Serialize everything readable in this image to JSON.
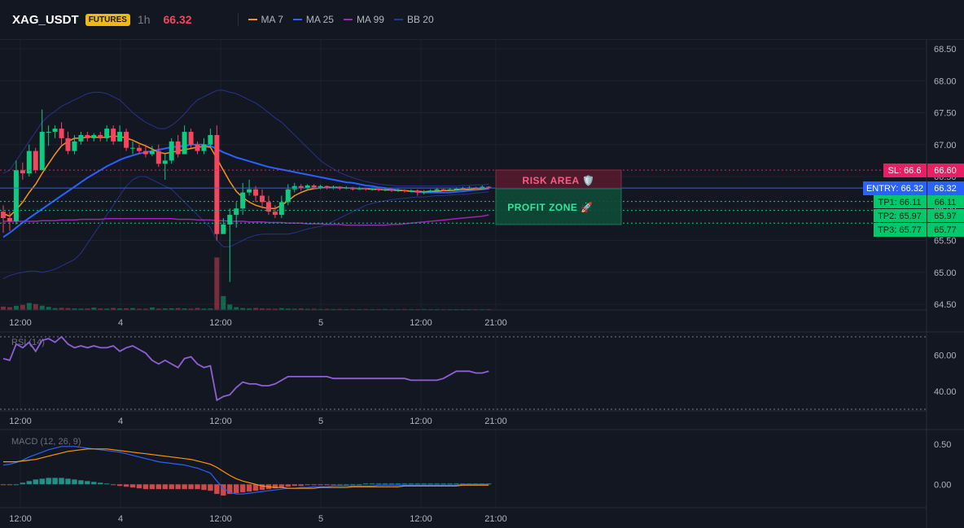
{
  "header": {
    "symbol": "XAG_USDT",
    "badge": "FUTURES",
    "timeframe": "1h",
    "price": "66.32",
    "legend": [
      {
        "label": "MA 7",
        "color": "#f7931a"
      },
      {
        "label": "MA 25",
        "color": "#2962ff"
      },
      {
        "label": "MA 99",
        "color": "#9c27b0"
      },
      {
        "label": "BB 20",
        "color": "#1e3a8a"
      }
    ]
  },
  "colors": {
    "up": "#0ecb81",
    "down": "#f6465d",
    "grid": "#1e2230",
    "axis_text": "#b2b5be"
  },
  "price_axis": {
    "ticks": [
      "68.50",
      "68.00",
      "67.50",
      "67.00",
      "66.50",
      "66.00",
      "65.50",
      "65.00",
      "64.50"
    ],
    "ylim": [
      64.5,
      68.5
    ]
  },
  "time_axis": {
    "ticks": [
      "12:00",
      "4",
      "12:00",
      "5",
      "12:00",
      "21:00"
    ]
  },
  "levels": {
    "sl_label": "SL: 66.6",
    "sl_value": "66.60",
    "sl_price": 66.6,
    "entry_label": "ENTRY: 66.32",
    "entry_value": "66.32",
    "entry_price": 66.32,
    "tp": [
      {
        "label": "TP1: 66.11",
        "value": "66.11",
        "price": 66.11
      },
      {
        "label": "TP2: 65.97",
        "value": "65.97",
        "price": 65.97
      },
      {
        "label": "TP3: 65.77",
        "value": "65.77",
        "price": 65.77
      }
    ]
  },
  "zones": {
    "risk_label": "RISK AREA 🛡️",
    "profit_label": "PROFIT ZONE 🚀"
  },
  "rsi": {
    "label": "RSI (14)",
    "ticks": [
      "60.00",
      "40.00"
    ],
    "ylim": [
      30,
      70
    ]
  },
  "macd": {
    "label": "MACD (12, 26, 9)",
    "ticks": [
      "0.50",
      "0.00"
    ],
    "ylim": [
      -0.25,
      0.6
    ]
  },
  "chart_data": {
    "type": "candlestick",
    "candles": [
      [
        65.95,
        65.85,
        66.05,
        65.62
      ],
      [
        65.85,
        65.8,
        65.95,
        65.65
      ],
      [
        65.8,
        66.6,
        66.75,
        65.75
      ],
      [
        66.6,
        66.55,
        66.72,
        66.45
      ],
      [
        66.55,
        66.9,
        67.0,
        66.5
      ],
      [
        66.9,
        66.6,
        66.95,
        66.55
      ],
      [
        66.6,
        67.2,
        67.55,
        66.6
      ],
      [
        67.2,
        67.2,
        67.3,
        66.98
      ],
      [
        67.2,
        67.25,
        67.3,
        67.1
      ],
      [
        67.25,
        67.1,
        67.35,
        67.0
      ],
      [
        67.1,
        66.9,
        67.2,
        66.85
      ],
      [
        66.9,
        67.05,
        67.15,
        66.85
      ],
      [
        67.05,
        67.15,
        67.2,
        67.0
      ],
      [
        67.15,
        67.1,
        67.2,
        67.05
      ],
      [
        67.1,
        67.15,
        67.18,
        67.05
      ],
      [
        67.15,
        67.1,
        67.2,
        67.05
      ],
      [
        67.1,
        67.25,
        67.3,
        67.05
      ],
      [
        67.25,
        67.05,
        67.3,
        67.0
      ],
      [
        67.05,
        67.2,
        67.3,
        67.05
      ],
      [
        67.2,
        66.95,
        67.25,
        66.9
      ],
      [
        66.95,
        66.95,
        67.05,
        66.85
      ],
      [
        66.95,
        66.9,
        67.0,
        66.85
      ],
      [
        66.9,
        66.85,
        67.0,
        66.8
      ],
      [
        66.85,
        66.9,
        66.98,
        66.82
      ],
      [
        66.9,
        66.7,
        67.0,
        66.65
      ],
      [
        66.7,
        66.75,
        66.85,
        66.45
      ],
      [
        66.75,
        67.05,
        67.1,
        66.7
      ],
      [
        67.05,
        66.85,
        67.15,
        66.8
      ],
      [
        66.85,
        67.2,
        67.3,
        66.85
      ],
      [
        67.2,
        67.0,
        67.25,
        66.95
      ],
      [
        67.0,
        66.9,
        67.05,
        66.85
      ],
      [
        66.9,
        67.0,
        67.1,
        66.85
      ],
      [
        67.0,
        67.15,
        67.25,
        66.95
      ],
      [
        67.15,
        65.6,
        67.3,
        65.5
      ],
      [
        65.6,
        65.75,
        65.85,
        65.6
      ],
      [
        65.75,
        65.9,
        66.0,
        64.85
      ],
      [
        65.9,
        66.0,
        66.1,
        65.7
      ],
      [
        66.0,
        66.25,
        66.4,
        65.9
      ],
      [
        66.25,
        66.3,
        66.45,
        66.2
      ],
      [
        66.3,
        66.2,
        66.35,
        66.1
      ],
      [
        66.2,
        66.1,
        66.3,
        66.0
      ],
      [
        66.1,
        65.95,
        66.2,
        65.9
      ],
      [
        65.95,
        65.9,
        66.05,
        65.85
      ],
      [
        65.9,
        66.1,
        66.2,
        65.85
      ],
      [
        66.1,
        66.3,
        66.38,
        66.05
      ],
      [
        66.3,
        66.35,
        66.4,
        66.25
      ],
      [
        66.35,
        66.32,
        66.38,
        66.28
      ],
      [
        66.32,
        66.36,
        66.38,
        66.28
      ],
      [
        66.36,
        66.33,
        66.38,
        66.3
      ],
      [
        66.33,
        66.35,
        66.37,
        66.3
      ],
      [
        66.35,
        66.32,
        66.36,
        66.3
      ],
      [
        66.32,
        66.34,
        66.36,
        66.3
      ],
      [
        66.34,
        66.31,
        66.35,
        66.29
      ],
      [
        66.31,
        66.33,
        66.35,
        66.3
      ],
      [
        66.33,
        66.3,
        66.34,
        66.28
      ],
      [
        66.3,
        66.32,
        66.34,
        66.29
      ],
      [
        66.32,
        66.3,
        66.33,
        66.28
      ],
      [
        66.3,
        66.31,
        66.33,
        66.28
      ],
      [
        66.31,
        66.29,
        66.32,
        66.27
      ],
      [
        66.29,
        66.3,
        66.32,
        66.27
      ],
      [
        66.3,
        66.28,
        66.31,
        66.26
      ],
      [
        66.28,
        66.29,
        66.31,
        66.26
      ],
      [
        66.29,
        66.27,
        66.3,
        66.25
      ],
      [
        66.27,
        66.28,
        66.3,
        66.25
      ],
      [
        66.28,
        66.25,
        66.3,
        66.2
      ],
      [
        66.25,
        66.27,
        66.29,
        66.22
      ],
      [
        66.27,
        66.28,
        66.3,
        66.25
      ],
      [
        66.28,
        66.3,
        66.32,
        66.26
      ],
      [
        66.3,
        66.28,
        66.31,
        66.27
      ],
      [
        66.28,
        66.3,
        66.32,
        66.27
      ],
      [
        66.3,
        66.31,
        66.33,
        66.28
      ],
      [
        66.31,
        66.32,
        66.34,
        66.3
      ],
      [
        66.32,
        66.33,
        66.35,
        66.3
      ],
      [
        66.33,
        66.32,
        66.34,
        66.3
      ],
      [
        66.32,
        66.34,
        66.36,
        66.31
      ],
      [
        66.34,
        66.32,
        66.35,
        66.3
      ]
    ],
    "volume": [
      0.22,
      0.18,
      0.27,
      0.33,
      0.45,
      0.38,
      0.28,
      0.2,
      0.12,
      0.14,
      0.12,
      0.1,
      0.09,
      0.1,
      0.15,
      0.1,
      0.09,
      0.13,
      0.1,
      0.11,
      0.12,
      0.08,
      0.08,
      0.16,
      0.09,
      0.1,
      0.11,
      0.12,
      0.1,
      0.09,
      0.13,
      0.09,
      0.1,
      3.4,
      0.9,
      0.35,
      0.18,
      0.12,
      0.1,
      0.13,
      0.1,
      0.09,
      0.08,
      0.12,
      0.09,
      0.08,
      0.1,
      0.07,
      0.08,
      0.06,
      0.07,
      0.06,
      0.07,
      0.05,
      0.06,
      0.05,
      0.06,
      0.05,
      0.05,
      0.06,
      0.05,
      0.05,
      0.06,
      0.05,
      0.04,
      0.06,
      0.05,
      0.05,
      0.04,
      0.05,
      0.04,
      0.05,
      0.04,
      0.05,
      0.04,
      0.04
    ],
    "ma7": [
      65.92,
      65.88,
      65.98,
      66.1,
      66.25,
      66.38,
      66.55,
      66.7,
      66.85,
      66.98,
      67.05,
      67.1,
      67.1,
      67.12,
      67.12,
      67.11,
      67.12,
      67.13,
      67.13,
      67.1,
      67.07,
      67.02,
      66.98,
      66.93,
      66.88,
      66.86,
      66.88,
      66.9,
      66.92,
      66.94,
      66.96,
      66.97,
      66.96,
      66.78,
      66.6,
      66.42,
      66.27,
      66.17,
      66.1,
      66.05,
      66.02,
      66.0,
      66.0,
      66.05,
      66.12,
      66.2,
      66.25,
      66.29,
      66.31,
      66.32,
      66.33,
      66.33,
      66.33,
      66.32,
      66.32,
      66.31,
      66.31,
      66.3,
      66.3,
      66.29,
      66.29,
      66.28,
      66.28,
      66.27,
      66.27,
      66.26,
      66.27,
      66.27,
      66.28,
      66.28,
      66.29,
      66.3,
      66.3,
      66.31,
      66.31,
      66.32
    ],
    "ma25": [
      65.55,
      65.62,
      65.7,
      65.78,
      65.85,
      65.92,
      65.99,
      66.06,
      66.13,
      66.2,
      66.27,
      66.34,
      66.41,
      66.48,
      66.54,
      66.6,
      66.66,
      66.71,
      66.76,
      66.8,
      66.83,
      66.86,
      66.88,
      66.9,
      66.92,
      66.94,
      66.96,
      66.97,
      66.98,
      67.0,
      67.0,
      67.0,
      66.98,
      66.93,
      66.88,
      66.84,
      66.8,
      66.77,
      66.74,
      66.71,
      66.68,
      66.65,
      66.63,
      66.61,
      66.59,
      66.57,
      66.55,
      66.53,
      66.51,
      66.49,
      66.47,
      66.45,
      66.43,
      66.41,
      66.4,
      66.38,
      66.36,
      66.35,
      66.33,
      66.32,
      66.3,
      66.29,
      66.28,
      66.27,
      66.26,
      66.25,
      66.25,
      66.25,
      66.25,
      66.25,
      66.26,
      66.27,
      66.28,
      66.29,
      66.3,
      66.31
    ],
    "ma99": [
      65.8,
      65.8,
      65.8,
      65.8,
      65.8,
      65.8,
      65.81,
      65.81,
      65.81,
      65.82,
      65.82,
      65.82,
      65.83,
      65.83,
      65.83,
      65.83,
      65.84,
      65.84,
      65.84,
      65.84,
      65.84,
      65.84,
      65.84,
      65.84,
      65.84,
      65.84,
      65.84,
      65.83,
      65.83,
      65.83,
      65.82,
      65.82,
      65.82,
      65.81,
      65.81,
      65.8,
      65.8,
      65.8,
      65.79,
      65.79,
      65.79,
      65.78,
      65.78,
      65.78,
      65.77,
      65.77,
      65.77,
      65.76,
      65.76,
      65.76,
      65.75,
      65.75,
      65.75,
      65.74,
      65.74,
      65.74,
      65.74,
      65.74,
      65.74,
      65.74,
      65.75,
      65.75,
      65.76,
      65.77,
      65.78,
      65.79,
      65.8,
      65.81,
      65.82,
      65.83,
      65.84,
      65.85,
      65.86,
      65.87,
      65.88,
      65.9
    ],
    "bb_upper": [
      66.55,
      66.6,
      66.75,
      66.9,
      67.05,
      67.2,
      67.35,
      67.45,
      67.52,
      67.6,
      67.65,
      67.7,
      67.75,
      67.8,
      67.82,
      67.82,
      67.8,
      67.75,
      67.7,
      67.6,
      67.5,
      67.42,
      67.35,
      67.3,
      67.25,
      67.25,
      67.3,
      67.38,
      67.48,
      67.6,
      67.7,
      67.75,
      67.8,
      67.85,
      67.85,
      67.82,
      67.8,
      67.75,
      67.7,
      67.65,
      67.58,
      67.5,
      67.42,
      67.35,
      67.25,
      67.15,
      67.05,
      66.95,
      66.85,
      66.75,
      66.68,
      66.62,
      66.56,
      66.52,
      66.48,
      66.45,
      66.42,
      66.4,
      66.38,
      66.37,
      66.36,
      66.35,
      66.35,
      66.35,
      66.35,
      66.35,
      66.35,
      66.35,
      66.35,
      66.35,
      66.35,
      66.36,
      66.36,
      66.37,
      66.37,
      66.38
    ],
    "bb_lower": [
      64.9,
      64.95,
      64.98,
      65.0,
      65.02,
      65.02,
      65.0,
      65.02,
      65.05,
      65.1,
      65.15,
      65.2,
      65.3,
      65.45,
      65.6,
      65.75,
      65.9,
      66.05,
      66.2,
      66.35,
      66.45,
      66.5,
      66.5,
      66.45,
      66.4,
      66.35,
      66.3,
      66.2,
      66.1,
      66.0,
      65.9,
      65.8,
      65.7,
      65.5,
      65.4,
      65.4,
      65.45,
      65.5,
      65.55,
      65.58,
      65.6,
      65.6,
      65.6,
      65.6,
      65.6,
      65.62,
      65.65,
      65.68,
      65.7,
      65.72,
      65.75,
      65.8,
      65.85,
      65.9,
      65.95,
      66.0,
      66.05,
      66.08,
      66.1,
      66.12,
      66.14,
      66.15,
      66.16,
      66.17,
      66.18,
      66.18,
      66.19,
      66.2,
      66.2,
      66.21,
      66.22,
      66.22,
      66.23,
      66.24,
      66.25,
      66.26
    ],
    "rsi_values": [
      58,
      57,
      66,
      64,
      67,
      62,
      68,
      69,
      67,
      70,
      66,
      64,
      65,
      64,
      65,
      64,
      64,
      65,
      62,
      64,
      65,
      63,
      61,
      57,
      55,
      57,
      55,
      53,
      58,
      59,
      55,
      53,
      54,
      35,
      37,
      38,
      42,
      45,
      44,
      44,
      43,
      43,
      44,
      46,
      48,
      48,
      48,
      48,
      48,
      48,
      48,
      47,
      47,
      47,
      47,
      47,
      47,
      47,
      47,
      47,
      47,
      47,
      47,
      46,
      46,
      46,
      46,
      46,
      47,
      49,
      51,
      51,
      51,
      50,
      50,
      51
    ],
    "macd_line": [
      0.24,
      0.25,
      0.27,
      0.3,
      0.34,
      0.37,
      0.4,
      0.43,
      0.45,
      0.47,
      0.47,
      0.47,
      0.46,
      0.45,
      0.44,
      0.43,
      0.42,
      0.41,
      0.4,
      0.38,
      0.36,
      0.34,
      0.32,
      0.3,
      0.28,
      0.27,
      0.26,
      0.25,
      0.24,
      0.22,
      0.2,
      0.17,
      0.14,
      0.04,
      -0.05,
      -0.1,
      -0.12,
      -0.12,
      -0.11,
      -0.1,
      -0.09,
      -0.08,
      -0.07,
      -0.06,
      -0.05,
      -0.05,
      -0.04,
      -0.04,
      -0.03,
      -0.03,
      -0.03,
      -0.02,
      -0.02,
      -0.02,
      -0.02,
      -0.02,
      -0.02,
      -0.02,
      -0.01,
      -0.01,
      -0.01,
      -0.01,
      -0.01,
      -0.01,
      -0.01,
      -0.01,
      -0.01,
      -0.01,
      -0.01,
      -0.01,
      -0.01,
      0.0,
      0.0,
      0.0,
      0.0,
      0.0
    ],
    "signal_line": [
      0.28,
      0.28,
      0.28,
      0.29,
      0.3,
      0.31,
      0.33,
      0.35,
      0.37,
      0.39,
      0.41,
      0.42,
      0.43,
      0.44,
      0.44,
      0.44,
      0.44,
      0.43,
      0.42,
      0.41,
      0.4,
      0.39,
      0.38,
      0.37,
      0.36,
      0.35,
      0.34,
      0.33,
      0.32,
      0.31,
      0.29,
      0.27,
      0.25,
      0.21,
      0.16,
      0.11,
      0.07,
      0.04,
      0.02,
      0.0,
      -0.02,
      -0.03,
      -0.04,
      -0.04,
      -0.05,
      -0.05,
      -0.05,
      -0.05,
      -0.05,
      -0.04,
      -0.04,
      -0.04,
      -0.04,
      -0.04,
      -0.03,
      -0.03,
      -0.03,
      -0.03,
      -0.03,
      -0.03,
      -0.03,
      -0.03,
      -0.02,
      -0.02,
      -0.02,
      -0.02,
      -0.02,
      -0.02,
      -0.02,
      -0.02,
      -0.02,
      -0.01,
      -0.01,
      -0.01,
      -0.01,
      -0.01
    ],
    "histogram": [
      -0.01,
      -0.01,
      0.0,
      0.02,
      0.04,
      0.06,
      0.07,
      0.08,
      0.08,
      0.08,
      0.07,
      0.06,
      0.05,
      0.04,
      0.03,
      0.02,
      0.01,
      -0.01,
      -0.02,
      -0.03,
      -0.04,
      -0.05,
      -0.06,
      -0.06,
      -0.06,
      -0.06,
      -0.06,
      -0.06,
      -0.06,
      -0.06,
      -0.06,
      -0.07,
      -0.08,
      -0.12,
      -0.14,
      -0.12,
      -0.11,
      -0.1,
      -0.09,
      -0.08,
      -0.07,
      -0.06,
      -0.05,
      -0.04,
      -0.03,
      -0.02,
      -0.02,
      -0.01,
      -0.01,
      -0.01,
      -0.01,
      0.0,
      0.0,
      0.0,
      0.0,
      0.0,
      0.01,
      0.01,
      0.01,
      0.01,
      0.01,
      0.01,
      0.01,
      0.01,
      0.01,
      0.01,
      0.01,
      0.01,
      0.01,
      0.01,
      0.01,
      0.01,
      0.01,
      0.01,
      0.01,
      0.01
    ]
  }
}
